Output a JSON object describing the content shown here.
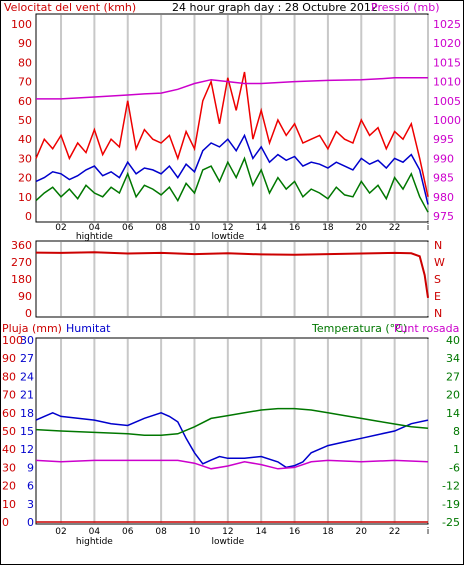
{
  "chart_data": [
    {
      "type": "line",
      "title": "24 hour graph day : 28 Octubre 2012",
      "left_axis_label": "Velocitat del vent (kmh)",
      "right_axis_label": "Pressió (mb)",
      "y_left_ticks": [
        "100",
        "90",
        "80",
        "70",
        "60",
        "50",
        "40",
        "30",
        "20",
        "10",
        "0"
      ],
      "y_left_range": [
        0,
        100
      ],
      "y_right_ticks": [
        "1025",
        "1020",
        "1015",
        "1010",
        "1005",
        "1000",
        "995",
        "990",
        "985",
        "980",
        "975"
      ],
      "y_right_range": [
        975,
        1025
      ],
      "x_ticks": [
        "02",
        "04",
        "06",
        "08",
        "10",
        "12",
        "14",
        "16",
        "18",
        "20",
        "22",
        "i"
      ],
      "x_hours": [
        2,
        4,
        6,
        8,
        10,
        12,
        14,
        16,
        18,
        20,
        22,
        24
      ],
      "x_range_hours": [
        0.5,
        24
      ],
      "tide_labels": [
        {
          "hour": 4,
          "text": "hightide"
        },
        {
          "hour": 12,
          "text": "lowtide"
        }
      ],
      "series": [
        {
          "name": "gust",
          "color": "#ee0000",
          "axis": "left",
          "x": [
            0.5,
            1,
            1.5,
            2,
            2.5,
            3,
            3.5,
            4,
            4.5,
            5,
            5.5,
            6,
            6.5,
            7,
            7.5,
            8,
            8.5,
            9,
            9.5,
            10,
            10.5,
            11,
            11.5,
            12,
            12.5,
            13,
            13.5,
            14,
            14.5,
            15,
            15.5,
            16,
            16.5,
            17,
            17.5,
            18,
            18.5,
            19,
            19.5,
            20,
            20.5,
            21,
            21.5,
            22,
            22.5,
            23,
            23.5,
            24
          ],
          "y": [
            30,
            40,
            35,
            42,
            30,
            38,
            33,
            45,
            32,
            40,
            36,
            60,
            35,
            45,
            40,
            38,
            42,
            30,
            44,
            35,
            60,
            70,
            48,
            72,
            55,
            75,
            40,
            55,
            38,
            50,
            42,
            48,
            38,
            40,
            42,
            35,
            44,
            40,
            38,
            50,
            42,
            46,
            35,
            44,
            40,
            48,
            30,
            10
          ]
        },
        {
          "name": "average",
          "color": "#0000cc",
          "axis": "left",
          "x": [
            0.5,
            1,
            1.5,
            2,
            2.5,
            3,
            3.5,
            4,
            4.5,
            5,
            5.5,
            6,
            6.5,
            7,
            7.5,
            8,
            8.5,
            9,
            9.5,
            10,
            10.5,
            11,
            11.5,
            12,
            12.5,
            13,
            13.5,
            14,
            14.5,
            15,
            15.5,
            16,
            16.5,
            17,
            17.5,
            18,
            18.5,
            19,
            19.5,
            20,
            20.5,
            21,
            21.5,
            22,
            22.5,
            23,
            23.5,
            24
          ],
          "y": [
            18,
            20,
            23,
            22,
            19,
            21,
            24,
            26,
            21,
            23,
            20,
            28,
            22,
            25,
            24,
            22,
            26,
            20,
            27,
            23,
            34,
            38,
            36,
            40,
            34,
            42,
            30,
            36,
            28,
            32,
            29,
            31,
            26,
            28,
            27,
            25,
            28,
            26,
            24,
            30,
            27,
            29,
            25,
            30,
            28,
            32,
            24,
            6
          ]
        },
        {
          "name": "minimum",
          "color": "#007700",
          "axis": "left",
          "x": [
            0.5,
            1,
            1.5,
            2,
            2.5,
            3,
            3.5,
            4,
            4.5,
            5,
            5.5,
            6,
            6.5,
            7,
            7.5,
            8,
            8.5,
            9,
            9.5,
            10,
            10.5,
            11,
            11.5,
            12,
            12.5,
            13,
            13.5,
            14,
            14.5,
            15,
            15.5,
            16,
            16.5,
            17,
            17.5,
            18,
            18.5,
            19,
            19.5,
            20,
            20.5,
            21,
            21.5,
            22,
            22.5,
            23,
            23.5,
            24
          ],
          "y": [
            8,
            12,
            15,
            10,
            14,
            9,
            16,
            12,
            10,
            15,
            12,
            22,
            10,
            16,
            14,
            11,
            15,
            8,
            17,
            12,
            24,
            26,
            18,
            28,
            20,
            30,
            16,
            24,
            12,
            20,
            14,
            18,
            10,
            14,
            12,
            9,
            15,
            11,
            10,
            18,
            12,
            16,
            9,
            20,
            14,
            22,
            10,
            2
          ]
        },
        {
          "name": "pressure",
          "color": "#cc00cc",
          "axis": "right",
          "x": [
            0.5,
            2,
            4,
            6,
            7,
            8,
            9,
            10,
            11,
            12,
            13,
            14,
            16,
            18,
            20,
            21,
            22,
            23,
            24
          ],
          "y": [
            1005.5,
            1005.5,
            1006,
            1006.5,
            1006.8,
            1007,
            1008,
            1009.5,
            1010.5,
            1010,
            1009.5,
            1009.5,
            1010,
            1010.3,
            1010.5,
            1010.7,
            1011,
            1011,
            1011
          ]
        }
      ]
    },
    {
      "type": "scatter",
      "left_ticks": [
        "360",
        "270",
        "180",
        "90",
        "0"
      ],
      "y_range": [
        0,
        360
      ],
      "right_labels": [
        "N",
        "W",
        "S",
        "E",
        "N"
      ],
      "x_range_hours": [
        0.5,
        24
      ],
      "series": [
        {
          "name": "direction",
          "color": "#cc0000",
          "x": [
            0.5,
            2,
            4,
            6,
            8,
            10,
            12,
            14,
            16,
            18,
            20,
            22,
            23,
            23.5,
            23.8,
            24
          ],
          "y": [
            320,
            318,
            322,
            315,
            318,
            312,
            316,
            310,
            308,
            312,
            315,
            318,
            316,
            300,
            200,
            80
          ]
        }
      ]
    },
    {
      "type": "line",
      "left_axis_label_1": "Pluja (mm)",
      "left_axis_label_2": "Humitat",
      "right_axis_label_1": "Temperatura (°C)",
      "right_axis_label_2": "Punt rosada",
      "left_ticks_rain": [
        "100",
        "90",
        "80",
        "70",
        "60",
        "50",
        "40",
        "30",
        "20",
        "10",
        "0"
      ],
      "left_ticks_humidity": [
        "30",
        "27",
        "24",
        "21",
        "18",
        "15",
        "12",
        "9",
        "6",
        "3",
        "0"
      ],
      "right_ticks": [
        "40",
        "34",
        "27",
        "20",
        "14",
        "8",
        "1",
        "-6",
        "-12",
        "-19",
        "-25"
      ],
      "humidity_range": [
        0,
        100
      ],
      "temp_range": [
        -25,
        40
      ],
      "x_ticks": [
        "02",
        "04",
        "06",
        "08",
        "10",
        "12",
        "14",
        "16",
        "18",
        "20",
        "22",
        "i"
      ],
      "x_hours": [
        2,
        4,
        6,
        8,
        10,
        12,
        14,
        16,
        18,
        20,
        22,
        24
      ],
      "x_range_hours": [
        0.5,
        24
      ],
      "tide_labels": [
        {
          "hour": 4,
          "text": "hightide"
        },
        {
          "hour": 12,
          "text": "lowtide"
        }
      ],
      "series": [
        {
          "name": "humidity",
          "color": "#0000cc",
          "axis": "humidity",
          "x": [
            0.5,
            1,
            1.5,
            2,
            3,
            4,
            5,
            6,
            7,
            8,
            8.5,
            9,
            9.5,
            10,
            10.5,
            11,
            11.5,
            12,
            13,
            14,
            15,
            15.5,
            16,
            16.5,
            17,
            18,
            19,
            20,
            21,
            22,
            23,
            24
          ],
          "y": [
            56,
            58,
            60,
            58,
            57,
            56,
            54,
            53,
            57,
            60,
            58,
            55,
            46,
            38,
            32,
            34,
            36,
            35,
            35,
            36,
            33,
            30,
            31,
            33,
            38,
            42,
            44,
            46,
            48,
            50,
            54,
            56
          ]
        },
        {
          "name": "temperature",
          "color": "#007700",
          "axis": "temp",
          "x": [
            0.5,
            2,
            4,
            6,
            7,
            8,
            9,
            10,
            11,
            12,
            13,
            14,
            15,
            16,
            17,
            18,
            19,
            20,
            21,
            22,
            23,
            24
          ],
          "y": [
            8,
            7.5,
            7,
            6.5,
            6,
            6,
            6.5,
            9,
            12,
            13,
            14,
            15,
            15.5,
            15.5,
            15,
            14,
            13,
            12,
            11,
            10,
            9,
            8.5
          ]
        },
        {
          "name": "dewpoint",
          "color": "#cc00cc",
          "axis": "temp",
          "x": [
            0.5,
            2,
            4,
            6,
            8,
            9,
            10,
            11,
            12,
            13,
            14,
            15,
            16,
            17,
            18,
            20,
            22,
            24
          ],
          "y": [
            -3,
            -3.5,
            -3,
            -3,
            -3,
            -3,
            -4,
            -6,
            -5,
            -3.5,
            -4.5,
            -6,
            -5.5,
            -3.5,
            -3,
            -3.5,
            -3,
            -3.5
          ]
        },
        {
          "name": "rain",
          "color": "#cc0000",
          "axis": "rain",
          "x": [
            0.5,
            24
          ],
          "y": [
            0,
            0
          ]
        }
      ]
    }
  ]
}
